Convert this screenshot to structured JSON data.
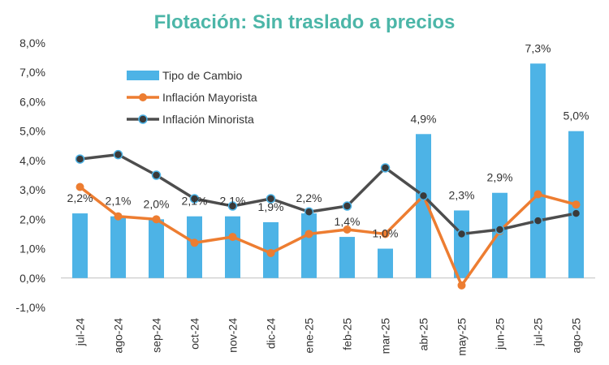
{
  "chart_data": {
    "type": "bar",
    "title": "Flotación: Sin traslado a precios",
    "categories": [
      "jul-24",
      "ago-24",
      "sep-24",
      "oct-24",
      "nov-24",
      "dic-24",
      "ene-25",
      "feb-25",
      "mar-25",
      "abr-25",
      "may-25",
      "jun-25",
      "jul-25",
      "ago-25"
    ],
    "series": [
      {
        "name": "Tipo de Cambio",
        "type": "bar",
        "color": "#4db3e6",
        "values": [
          2.2,
          2.1,
          2.0,
          2.1,
          2.1,
          1.9,
          2.2,
          1.4,
          1.0,
          4.9,
          2.3,
          2.9,
          7.3,
          5.0
        ],
        "labels": [
          "2,2%",
          "2,1%",
          "2,0%",
          "2,1%",
          "2,1%",
          "1,9%",
          "2,2%",
          "1,4%",
          "1,0%",
          "4,9%",
          "2,3%",
          "2,9%",
          "7,3%",
          "5,0%"
        ]
      },
      {
        "name": "Inflación Mayorista",
        "type": "line",
        "color": "#ed7d31",
        "values": [
          3.1,
          2.1,
          2.0,
          1.2,
          1.4,
          0.85,
          1.5,
          1.65,
          1.5,
          2.8,
          -0.25,
          1.6,
          2.85,
          2.5
        ]
      },
      {
        "name": "Inflación Minorista",
        "type": "line",
        "color": "#4d4d4d",
        "values": [
          4.05,
          4.2,
          3.5,
          2.7,
          2.45,
          2.7,
          2.25,
          2.45,
          3.75,
          2.8,
          1.5,
          1.65,
          1.95,
          2.2
        ]
      }
    ],
    "y_ticks": [
      "-1,0%",
      "0,0%",
      "1,0%",
      "2,0%",
      "3,0%",
      "4,0%",
      "5,0%",
      "6,0%",
      "7,0%",
      "8,0%"
    ],
    "ylim": [
      -1,
      8
    ],
    "grid": false,
    "legend_position": "top-left"
  }
}
